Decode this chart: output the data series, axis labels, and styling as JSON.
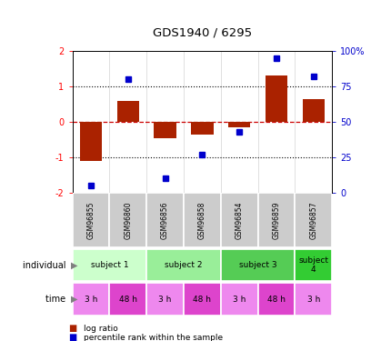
{
  "title": "GDS1940 / 6295",
  "samples": [
    "GSM96855",
    "GSM96860",
    "GSM96856",
    "GSM96858",
    "GSM96854",
    "GSM96859",
    "GSM96857"
  ],
  "log_ratios": [
    -1.1,
    0.6,
    -0.45,
    -0.35,
    -0.15,
    1.3,
    0.65
  ],
  "percentile_ranks": [
    5,
    80,
    10,
    27,
    43,
    95,
    82
  ],
  "individuals": [
    {
      "label": "subject 1",
      "start": 0,
      "end": 2,
      "color": "#ccffcc"
    },
    {
      "label": "subject 2",
      "start": 2,
      "end": 4,
      "color": "#99ee99"
    },
    {
      "label": "subject 3",
      "start": 4,
      "end": 6,
      "color": "#55cc55"
    },
    {
      "label": "subject\n4",
      "start": 6,
      "end": 7,
      "color": "#33cc33"
    }
  ],
  "times": [
    "3 h",
    "48 h",
    "3 h",
    "48 h",
    "3 h",
    "48 h",
    "3 h"
  ],
  "time_colors": [
    "#ee88ee",
    "#dd44cc",
    "#ee88ee",
    "#dd44cc",
    "#ee88ee",
    "#dd44cc",
    "#ee88ee"
  ],
  "ylim": [
    -2,
    2
  ],
  "y2lim": [
    0,
    100
  ],
  "bar_color": "#aa2200",
  "dot_color": "#0000cc",
  "zero_line_color": "#cc0000",
  "sample_bg": "#cccccc",
  "legend_bar_label": "log ratio",
  "legend_dot_label": "percentile rank within the sample"
}
